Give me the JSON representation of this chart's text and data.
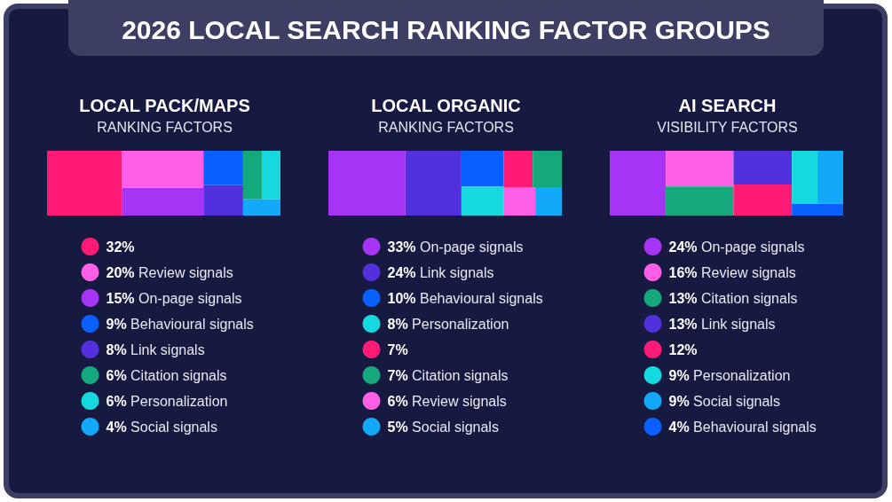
{
  "chart_data": [
    {
      "type": "other",
      "title": "2026 LOCAL SEARCH RANKING FACTOR GROUPS"
    },
    {
      "type": "other",
      "title": "LOCAL PACK/MAPS",
      "subtitle": "RANKING FACTORS",
      "categories": [
        null,
        "Review signals",
        "On-page signals",
        "Behavioural signals",
        "Link signals",
        "Citation signals",
        "Personalization",
        "Social signals"
      ],
      "values": [
        32,
        20,
        15,
        9,
        8,
        6,
        6,
        4
      ],
      "value_labels": [
        "32%",
        "20%",
        "15%",
        "9%",
        "8%",
        "6%",
        "6%",
        "4%"
      ],
      "colors": [
        "#ff1a75",
        "#ff5ee6",
        "#a634f5",
        "#0a60ff",
        "#5330de",
        "#14a87c",
        "#15d9df",
        "#13a9fa"
      ]
    },
    {
      "type": "other",
      "title": "LOCAL ORGANIC",
      "subtitle": "RANKING FACTORS",
      "categories": [
        "On-page signals",
        "Link signals",
        "Behavioural signals",
        "Personalization",
        null,
        "Citation signals",
        "Review signals",
        "Social signals"
      ],
      "values": [
        33,
        24,
        10,
        8,
        7,
        7,
        6,
        5
      ],
      "value_labels": [
        "33%",
        "24%",
        "10%",
        "8%",
        "7%",
        "7%",
        "6%",
        "5%"
      ],
      "colors": [
        "#a634f5",
        "#5330de",
        "#0a60ff",
        "#15d9df",
        "#ff1a75",
        "#14a87c",
        "#ff5ee6",
        "#13a9fa"
      ]
    },
    {
      "type": "other",
      "title": "AI SEARCH",
      "subtitle": "VISIBILITY FACTORS",
      "categories": [
        "On-page signals",
        "Review signals",
        "Citation signals",
        "Link signals",
        null,
        "Personalization",
        "Social signals",
        "Behavioural signals"
      ],
      "values": [
        24,
        16,
        13,
        13,
        12,
        9,
        9,
        4
      ],
      "value_labels": [
        "24%",
        "16%",
        "13%",
        "13%",
        "12%",
        "9%",
        "9%",
        "4%"
      ],
      "colors": [
        "#a634f5",
        "#ff5ee6",
        "#14a87c",
        "#5330de",
        "#ff1a75",
        "#15d9df",
        "#13a9fa",
        "#0a60ff"
      ]
    }
  ]
}
